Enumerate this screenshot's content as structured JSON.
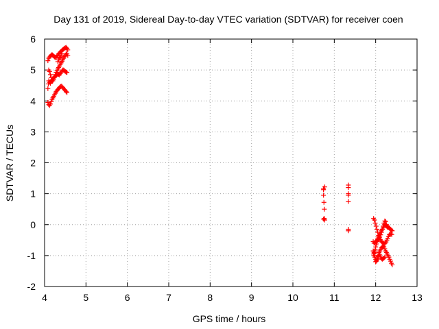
{
  "chart_data": {
    "type": "scatter",
    "title": "Day 131 of 2019, Sidereal Day-to-day VTEC variation (SDTVAR) for receiver coen",
    "xlabel": "GPS time / hours",
    "ylabel": "SDTVAR / TECUs",
    "xlim": [
      4,
      13
    ],
    "ylim": [
      -2,
      6
    ],
    "xticks": [
      "4",
      "5",
      "6",
      "7",
      "8",
      "9",
      "10",
      "11",
      "12",
      "13"
    ],
    "yticks": [
      "-2",
      "-1",
      "0",
      "1",
      "2",
      "3",
      "4",
      "5",
      "6"
    ],
    "grid": true,
    "marker": "+",
    "color": "#ff0000",
    "series": [
      {
        "points": [
          [
            4.08,
            3.95
          ],
          [
            4.1,
            3.88
          ],
          [
            4.12,
            3.85
          ],
          [
            4.14,
            3.9
          ],
          [
            4.16,
            3.98
          ],
          [
            4.18,
            4.05
          ],
          [
            4.2,
            4.1
          ],
          [
            4.22,
            4.15
          ],
          [
            4.24,
            4.2
          ],
          [
            4.26,
            4.25
          ],
          [
            4.28,
            4.3
          ],
          [
            4.3,
            4.33
          ],
          [
            4.32,
            4.37
          ],
          [
            4.34,
            4.4
          ],
          [
            4.36,
            4.43
          ],
          [
            4.38,
            4.46
          ],
          [
            4.4,
            4.48
          ],
          [
            4.42,
            4.47
          ],
          [
            4.44,
            4.43
          ],
          [
            4.46,
            4.4
          ],
          [
            4.48,
            4.37
          ],
          [
            4.5,
            4.34
          ],
          [
            4.52,
            4.3
          ],
          [
            4.54,
            4.27
          ],
          [
            4.08,
            4.4
          ],
          [
            4.09,
            4.55
          ],
          [
            4.1,
            4.65
          ],
          [
            4.12,
            4.6
          ],
          [
            4.14,
            4.57
          ],
          [
            4.16,
            4.62
          ],
          [
            4.18,
            4.66
          ],
          [
            4.2,
            4.7
          ],
          [
            4.22,
            4.74
          ],
          [
            4.24,
            4.77
          ],
          [
            4.26,
            4.8
          ],
          [
            4.28,
            4.82
          ],
          [
            4.3,
            4.85
          ],
          [
            4.32,
            4.87
          ],
          [
            4.34,
            4.86
          ],
          [
            4.36,
            4.84
          ],
          [
            4.38,
            4.88
          ],
          [
            4.4,
            4.93
          ],
          [
            4.42,
            4.97
          ],
          [
            4.44,
            5.0
          ],
          [
            4.46,
            5.0
          ],
          [
            4.48,
            4.98
          ],
          [
            4.5,
            4.95
          ],
          [
            4.52,
            4.93
          ],
          [
            4.54,
            4.92
          ],
          [
            4.1,
            5.0
          ],
          [
            4.12,
            4.95
          ],
          [
            4.14,
            4.85
          ],
          [
            4.16,
            4.75
          ],
          [
            4.18,
            4.68
          ],
          [
            4.2,
            4.65
          ],
          [
            4.22,
            4.7
          ],
          [
            4.24,
            4.78
          ],
          [
            4.26,
            4.85
          ],
          [
            4.28,
            4.92
          ],
          [
            4.3,
            4.98
          ],
          [
            4.32,
            5.03
          ],
          [
            4.34,
            5.08
          ],
          [
            4.36,
            5.13
          ],
          [
            4.38,
            5.18
          ],
          [
            4.4,
            5.23
          ],
          [
            4.42,
            5.28
          ],
          [
            4.44,
            5.33
          ],
          [
            4.46,
            5.38
          ],
          [
            4.48,
            5.43
          ],
          [
            4.5,
            5.48
          ],
          [
            4.52,
            5.52
          ],
          [
            4.54,
            5.52
          ],
          [
            4.56,
            5.47
          ],
          [
            4.08,
            5.3
          ],
          [
            4.1,
            5.38
          ],
          [
            4.12,
            5.42
          ],
          [
            4.14,
            5.45
          ],
          [
            4.16,
            5.48
          ],
          [
            4.18,
            5.5
          ],
          [
            4.2,
            5.48
          ],
          [
            4.22,
            5.45
          ],
          [
            4.24,
            5.42
          ],
          [
            4.26,
            5.4
          ],
          [
            4.28,
            5.42
          ],
          [
            4.3,
            5.45
          ],
          [
            4.32,
            5.48
          ],
          [
            4.34,
            5.52
          ],
          [
            4.36,
            5.55
          ],
          [
            4.38,
            5.58
          ],
          [
            4.4,
            5.6
          ],
          [
            4.42,
            5.63
          ],
          [
            4.44,
            5.66
          ],
          [
            4.46,
            5.68
          ],
          [
            4.48,
            5.7
          ],
          [
            4.5,
            5.72
          ],
          [
            4.52,
            5.73
          ],
          [
            4.54,
            5.7
          ],
          [
            4.56,
            5.65
          ],
          [
            4.32,
            5.27
          ],
          [
            4.34,
            5.33
          ],
          [
            4.36,
            5.38
          ],
          [
            4.38,
            5.41
          ],
          [
            4.4,
            5.45
          ],
          [
            4.42,
            5.52
          ],
          [
            10.74,
            1.17
          ],
          [
            10.74,
            1.13
          ],
          [
            10.74,
            0.95
          ],
          [
            10.75,
            0.72
          ],
          [
            10.76,
            0.5
          ],
          [
            10.76,
            0.2
          ],
          [
            10.77,
            0.15
          ],
          [
            10.74,
            0.18
          ],
          [
            10.77,
            1.22
          ],
          [
            11.34,
            1.28
          ],
          [
            11.34,
            1.2
          ],
          [
            11.34,
            1.0
          ],
          [
            11.34,
            0.95
          ],
          [
            11.34,
            0.75
          ],
          [
            11.34,
            -0.15
          ],
          [
            11.34,
            -0.2
          ],
          [
            11.95,
            0.2
          ],
          [
            11.97,
            0.15
          ],
          [
            11.99,
            0.05
          ],
          [
            12.01,
            -0.05
          ],
          [
            12.03,
            -0.15
          ],
          [
            12.05,
            -0.25
          ],
          [
            12.07,
            -0.35
          ],
          [
            12.09,
            -0.42
          ],
          [
            12.11,
            -0.48
          ],
          [
            12.13,
            -0.53
          ],
          [
            12.15,
            -0.56
          ],
          [
            12.17,
            -0.58
          ],
          [
            12.19,
            -0.6
          ],
          [
            12.21,
            -0.62
          ],
          [
            12.23,
            -0.6
          ],
          [
            12.25,
            -0.56
          ],
          [
            12.27,
            -0.5
          ],
          [
            12.29,
            -0.44
          ],
          [
            12.31,
            -0.38
          ],
          [
            12.33,
            -0.33
          ],
          [
            12.35,
            -0.3
          ],
          [
            12.37,
            -0.3
          ],
          [
            12.39,
            -0.32
          ],
          [
            11.94,
            -0.55
          ],
          [
            11.96,
            -0.6
          ],
          [
            11.98,
            -0.58
          ],
          [
            12.0,
            -0.55
          ],
          [
            12.02,
            -0.52
          ],
          [
            12.04,
            -0.5
          ],
          [
            12.06,
            -0.48
          ],
          [
            12.08,
            -0.45
          ],
          [
            12.1,
            -0.4
          ],
          [
            12.12,
            -0.33
          ],
          [
            12.14,
            -0.25
          ],
          [
            12.16,
            -0.15
          ],
          [
            12.18,
            -0.05
          ],
          [
            12.2,
            0.05
          ],
          [
            12.22,
            0.12
          ],
          [
            12.24,
            0.1
          ],
          [
            12.26,
            0.0
          ],
          [
            12.28,
            -0.05
          ],
          [
            12.3,
            -0.08
          ],
          [
            12.32,
            -0.1
          ],
          [
            12.34,
            -0.12
          ],
          [
            12.36,
            -0.15
          ],
          [
            12.38,
            -0.18
          ],
          [
            12.4,
            -0.2
          ],
          [
            11.94,
            -0.85
          ],
          [
            11.95,
            -0.95
          ],
          [
            11.96,
            -1.0
          ],
          [
            11.97,
            -0.92
          ],
          [
            11.98,
            -0.85
          ],
          [
            11.99,
            -0.8
          ],
          [
            12.0,
            -0.72
          ],
          [
            12.01,
            -0.65
          ],
          [
            12.02,
            -0.6
          ],
          [
            12.03,
            -0.55
          ],
          [
            12.04,
            -0.5
          ],
          [
            12.05,
            -0.45
          ],
          [
            12.06,
            -0.4
          ],
          [
            12.08,
            -0.35
          ],
          [
            12.1,
            -0.3
          ],
          [
            12.12,
            -0.25
          ],
          [
            12.14,
            -0.2
          ],
          [
            12.16,
            -0.15
          ],
          [
            12.18,
            -0.1
          ],
          [
            12.2,
            -0.05
          ],
          [
            12.22,
            0.0
          ],
          [
            12.24,
            -0.02
          ],
          [
            12.26,
            -0.05
          ],
          [
            12.28,
            -0.08
          ],
          [
            11.96,
            -0.9
          ],
          [
            11.98,
            -1.05
          ],
          [
            12.0,
            -1.12
          ],
          [
            12.02,
            -1.15
          ],
          [
            12.04,
            -1.1
          ],
          [
            12.06,
            -1.0
          ],
          [
            12.08,
            -0.9
          ],
          [
            12.1,
            -0.85
          ],
          [
            12.12,
            -0.8
          ],
          [
            12.14,
            -0.75
          ],
          [
            12.16,
            -0.72
          ],
          [
            12.18,
            -0.7
          ],
          [
            12.2,
            -0.72
          ],
          [
            12.22,
            -0.78
          ],
          [
            12.24,
            -0.85
          ],
          [
            12.26,
            -0.9
          ],
          [
            12.28,
            -0.95
          ],
          [
            12.3,
            -1.0
          ],
          [
            12.32,
            -1.05
          ],
          [
            12.34,
            -1.12
          ],
          [
            12.36,
            -1.18
          ],
          [
            12.38,
            -1.25
          ],
          [
            12.4,
            -1.3
          ],
          [
            12.0,
            -1.2
          ],
          [
            12.02,
            -1.18
          ],
          [
            12.04,
            -1.12
          ],
          [
            12.06,
            -1.02
          ],
          [
            12.08,
            -0.95
          ],
          [
            12.1,
            -0.98
          ],
          [
            12.12,
            -1.05
          ],
          [
            12.14,
            -1.1
          ],
          [
            12.16,
            -1.12
          ],
          [
            12.18,
            -1.1
          ],
          [
            12.2,
            -1.08
          ],
          [
            12.22,
            -1.05
          ]
        ]
      }
    ]
  }
}
